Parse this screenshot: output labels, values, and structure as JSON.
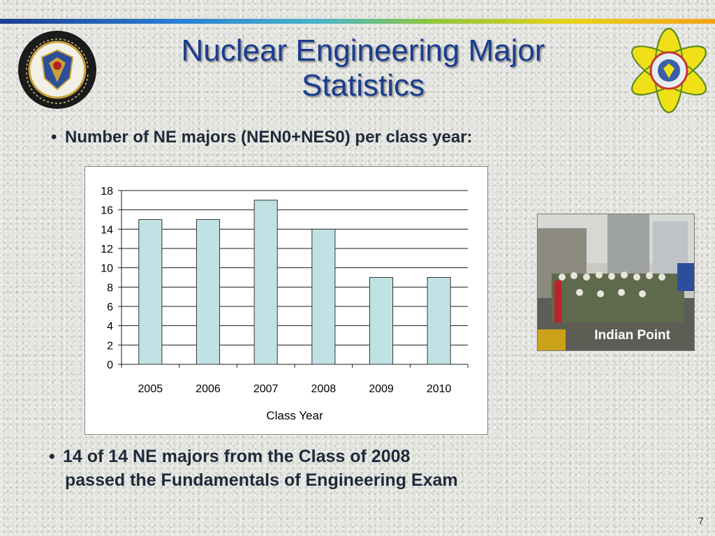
{
  "slide": {
    "title_line1": "Nuclear Engineering Major",
    "title_line2": "Statistics",
    "bullet1": "Number of NE majors (NEN0+NES0) per class year:",
    "bullet2_line1": "14 of 14 NE majors from the Class of 2008",
    "bullet2_line2": "passed the Fundamentals of Engineering Exam",
    "bullet_char": "•",
    "photo_caption": "Indian Point",
    "page_number": "7"
  },
  "logos": {
    "left_ring_top": "UNITED STATES MILITARY ACADEMY",
    "left_ring_bottom": "Department of Physics",
    "left_icon": "west-point-crest-seal",
    "right_icon": "atom-orbit-logo"
  },
  "colors": {
    "title": "#1a3d8f",
    "bar_fill": "#c0e2e4",
    "bar_stroke": "#333333",
    "text": "#1e2a3a"
  },
  "chart_data": {
    "type": "bar",
    "categories": [
      "2005",
      "2006",
      "2007",
      "2008",
      "2009",
      "2010"
    ],
    "values": [
      15,
      15,
      17,
      14,
      9,
      9
    ],
    "title": "",
    "xlabel": "Class Year",
    "ylabel": "",
    "ylim": [
      0,
      18
    ],
    "yticks": [
      0,
      2,
      4,
      6,
      8,
      10,
      12,
      14,
      16,
      18
    ],
    "grid": true,
    "legend": "none"
  }
}
